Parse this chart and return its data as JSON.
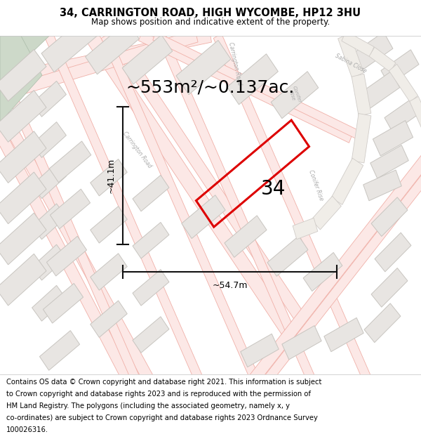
{
  "title": "34, CARRINGTON ROAD, HIGH WYCOMBE, HP12 3HU",
  "subtitle": "Map shows position and indicative extent of the property.",
  "area_text": "~553m²/~0.137ac.",
  "number_label": "34",
  "dim_width": "~54.7m",
  "dim_height": "~41.1m",
  "footer_text": "Contains OS data © Crown copyright and database right 2021. This information is subject to Crown copyright and database rights 2023 and is reproduced with the permission of HM Land Registry. The polygons (including the associated geometry, namely x, y co-ordinates) are subject to Crown copyright and database rights 2023 Ordnance Survey 100026316.",
  "map_bg": "#ffffff",
  "road_fill": "#fce8e6",
  "road_outline": "#f5a8a0",
  "road_line": "#f0b0a8",
  "road_gray": "#d0ccc8",
  "block_fill": "#e8e5e2",
  "block_edge": "#c8c5c0",
  "green_fill": "#d8e8d0",
  "green_edge": "#b8c8b0",
  "highlight_color": "#dd0000",
  "dim_line_color": "#111111",
  "label_color": "#aaaaaa",
  "title_fontsize": 10.5,
  "subtitle_fontsize": 8.5,
  "area_fontsize": 18,
  "number_fontsize": 20,
  "dim_fontsize": 9,
  "footer_fontsize": 7.2
}
